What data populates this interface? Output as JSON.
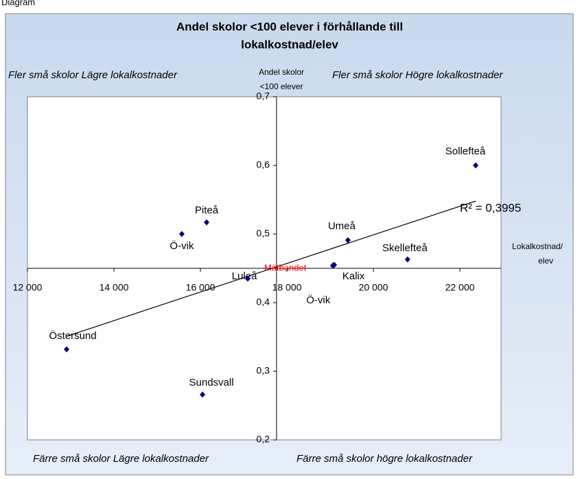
{
  "header": "Diagram",
  "chart_data": {
    "type": "scatter",
    "title": [
      "Andel skolor <100 elever i förhållande till",
      "lokalkostnad/elev"
    ],
    "y_label": [
      "Andel skolor",
      "<100 elever"
    ],
    "x_label": [
      "Lokalkostnad/",
      "elev"
    ],
    "quadrant_labels": [
      "Fler små skolor Lägre lokalkostnader",
      "Fler små skolor Högre lokalkostnader",
      "Färre små skolor Lägre lokalkostnader",
      "Färre små skolor högre lokalkostnader"
    ],
    "annotation": "Mätbandet",
    "annotation_color": "#ff0000",
    "xlim": [
      12000,
      23000
    ],
    "ylim": [
      0.2,
      0.7
    ],
    "xticks": [
      {
        "value": 12000,
        "label": "12 000"
      },
      {
        "value": 14000,
        "label": "14 000"
      },
      {
        "value": 16000,
        "label": "16 000"
      },
      {
        "value": 18000,
        "label": "18 000"
      },
      {
        "value": 20000,
        "label": "20 000"
      },
      {
        "value": 22000,
        "label": "22 000"
      }
    ],
    "yticks": [
      {
        "value": 0.2,
        "label": "0,2"
      },
      {
        "value": 0.3,
        "label": "0,3"
      },
      {
        "value": 0.4,
        "label": "0,4"
      },
      {
        "value": 0.5,
        "label": "0,5"
      },
      {
        "value": 0.6,
        "label": "0,6"
      },
      {
        "value": 0.7,
        "label": "0,7"
      }
    ],
    "x_axis_crosses_y": 0.45,
    "y_axis_crosses_x": 17760,
    "grid": false,
    "series": [
      {
        "color": "#000080",
        "labels": [
          "Östersund",
          "Sundsvall",
          "Ö-vik",
          "Piteå",
          "Luleå",
          "Kalix",
          "Ö-vik",
          "Umeå",
          "Skellefteå",
          "Sollefteå"
        ],
        "x": [
          12905,
          16048,
          15570,
          16143,
          17095,
          19095,
          19060,
          19410,
          20790,
          22365
        ],
        "values": [
          0.332,
          0.266,
          0.5,
          0.517,
          0.435,
          0.455,
          0.454,
          0.491,
          0.463,
          0.6
        ]
      }
    ],
    "trendline": {
      "x": [
        12905,
        22365
      ],
      "values": [
        0.351,
        0.548
      ],
      "label": "R² = 0,3995"
    }
  }
}
